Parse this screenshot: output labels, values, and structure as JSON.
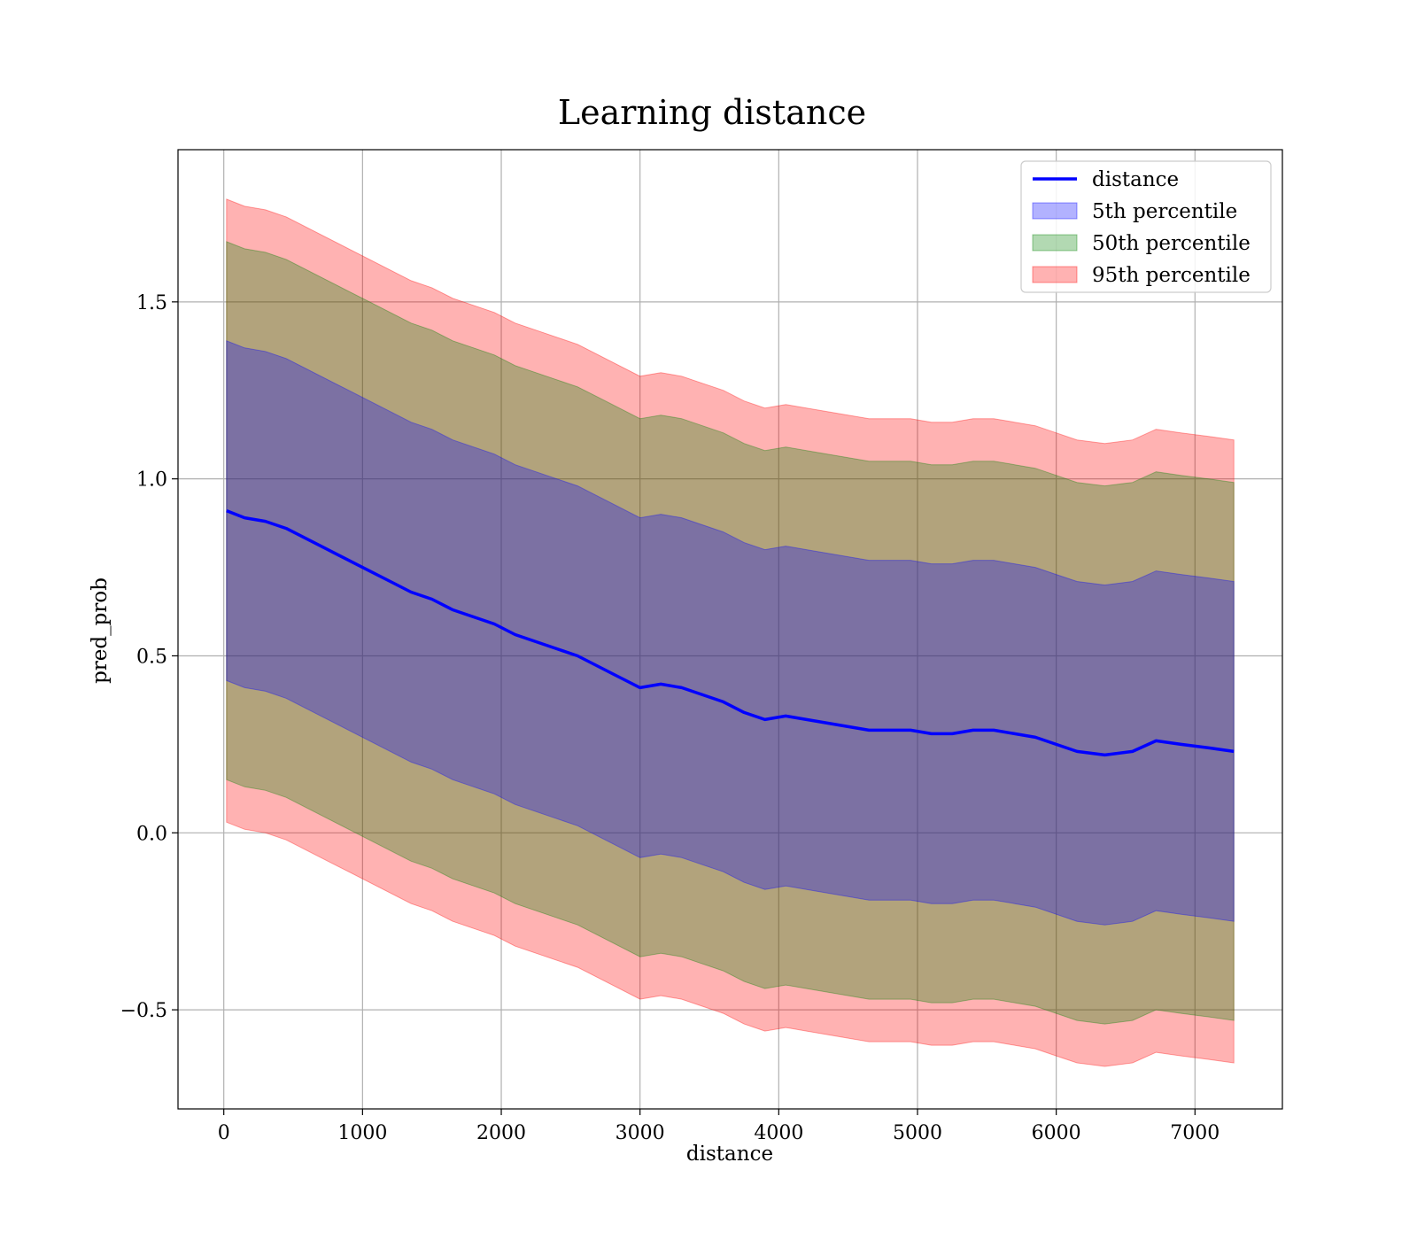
{
  "chart_data": {
    "type": "line",
    "title": "Learning distance",
    "xlabel": "distance",
    "ylabel": "pred_prob",
    "xlim": [
      -330,
      7630
    ],
    "ylim": [
      -0.78,
      1.93
    ],
    "grid": true,
    "legend_position": "top-right",
    "x_ticks": [
      0,
      1000,
      2000,
      3000,
      4000,
      5000,
      6000,
      7000
    ],
    "x_tick_labels": [
      "0",
      "1000",
      "2000",
      "3000",
      "4000",
      "5000",
      "6000",
      "7000"
    ],
    "y_ticks": [
      -0.5,
      0.0,
      0.5,
      1.0,
      1.5
    ],
    "y_tick_labels": [
      "−0.5",
      "0.0",
      "0.5",
      "1.0",
      "1.5"
    ],
    "colors": {
      "line": "#0000ff",
      "band_5th": "#0000ff",
      "band_50th": "#008000",
      "band_95th": "#ff0000",
      "grid": "#b0b0b0"
    },
    "series": [
      {
        "name": "distance",
        "kind": "line",
        "x": [
          20,
          150,
          300,
          450,
          600,
          750,
          900,
          1050,
          1200,
          1350,
          1500,
          1650,
          1800,
          1950,
          2100,
          2250,
          2400,
          2550,
          2700,
          2850,
          3000,
          3150,
          3300,
          3450,
          3600,
          3750,
          3900,
          4050,
          4200,
          4350,
          4500,
          4650,
          4800,
          4950,
          5100,
          5250,
          5400,
          5550,
          5700,
          5850,
          6000,
          6150,
          6350,
          6550,
          6720,
          6900,
          7100,
          7280
        ],
        "y": [
          0.91,
          0.89,
          0.88,
          0.86,
          0.83,
          0.8,
          0.77,
          0.74,
          0.71,
          0.68,
          0.66,
          0.63,
          0.61,
          0.59,
          0.56,
          0.54,
          0.52,
          0.5,
          0.47,
          0.44,
          0.41,
          0.42,
          0.41,
          0.39,
          0.37,
          0.34,
          0.32,
          0.33,
          0.32,
          0.31,
          0.3,
          0.29,
          0.29,
          0.29,
          0.28,
          0.28,
          0.29,
          0.29,
          0.28,
          0.27,
          0.25,
          0.23,
          0.22,
          0.23,
          0.26,
          0.25,
          0.24,
          0.23
        ]
      },
      {
        "name": "5th percentile",
        "kind": "band",
        "x": [
          20,
          150,
          300,
          450,
          600,
          750,
          900,
          1050,
          1200,
          1350,
          1500,
          1650,
          1800,
          1950,
          2100,
          2250,
          2400,
          2550,
          2700,
          2850,
          3000,
          3150,
          3300,
          3450,
          3600,
          3750,
          3900,
          4050,
          4200,
          4350,
          4500,
          4650,
          4800,
          4950,
          5100,
          5250,
          5400,
          5550,
          5700,
          5850,
          6000,
          6150,
          6350,
          6550,
          6720,
          6900,
          7100,
          7280
        ],
        "lower": [
          0.43,
          0.41,
          0.4,
          0.38,
          0.35,
          0.32,
          0.29,
          0.26,
          0.23,
          0.2,
          0.18,
          0.15,
          0.13,
          0.11,
          0.08,
          0.06,
          0.04,
          0.02,
          -0.01,
          -0.04,
          -0.07,
          -0.06,
          -0.07,
          -0.09,
          -0.11,
          -0.14,
          -0.16,
          -0.15,
          -0.16,
          -0.17,
          -0.18,
          -0.19,
          -0.19,
          -0.19,
          -0.2,
          -0.2,
          -0.19,
          -0.19,
          -0.2,
          -0.21,
          -0.23,
          -0.25,
          -0.26,
          -0.25,
          -0.22,
          -0.23,
          -0.24,
          -0.25
        ],
        "upper": [
          1.39,
          1.37,
          1.36,
          1.34,
          1.31,
          1.28,
          1.25,
          1.22,
          1.19,
          1.16,
          1.14,
          1.11,
          1.09,
          1.07,
          1.04,
          1.02,
          1.0,
          0.98,
          0.95,
          0.92,
          0.89,
          0.9,
          0.89,
          0.87,
          0.85,
          0.82,
          0.8,
          0.81,
          0.8,
          0.79,
          0.78,
          0.77,
          0.77,
          0.77,
          0.76,
          0.76,
          0.77,
          0.77,
          0.76,
          0.75,
          0.73,
          0.71,
          0.7,
          0.71,
          0.74,
          0.73,
          0.72,
          0.71
        ]
      },
      {
        "name": "50th percentile",
        "kind": "band",
        "x": [
          20,
          150,
          300,
          450,
          600,
          750,
          900,
          1050,
          1200,
          1350,
          1500,
          1650,
          1800,
          1950,
          2100,
          2250,
          2400,
          2550,
          2700,
          2850,
          3000,
          3150,
          3300,
          3450,
          3600,
          3750,
          3900,
          4050,
          4200,
          4350,
          4500,
          4650,
          4800,
          4950,
          5100,
          5250,
          5400,
          5550,
          5700,
          5850,
          6000,
          6150,
          6350,
          6550,
          6720,
          6900,
          7100,
          7280
        ],
        "lower": [
          0.15,
          0.13,
          0.12,
          0.1,
          0.07,
          0.04,
          0.01,
          -0.02,
          -0.05,
          -0.08,
          -0.1,
          -0.13,
          -0.15,
          -0.17,
          -0.2,
          -0.22,
          -0.24,
          -0.26,
          -0.29,
          -0.32,
          -0.35,
          -0.34,
          -0.35,
          -0.37,
          -0.39,
          -0.42,
          -0.44,
          -0.43,
          -0.44,
          -0.45,
          -0.46,
          -0.47,
          -0.47,
          -0.47,
          -0.48,
          -0.48,
          -0.47,
          -0.47,
          -0.48,
          -0.49,
          -0.51,
          -0.53,
          -0.54,
          -0.53,
          -0.5,
          -0.51,
          -0.52,
          -0.53
        ],
        "upper": [
          1.67,
          1.65,
          1.64,
          1.62,
          1.59,
          1.56,
          1.53,
          1.5,
          1.47,
          1.44,
          1.42,
          1.39,
          1.37,
          1.35,
          1.32,
          1.3,
          1.28,
          1.26,
          1.23,
          1.2,
          1.17,
          1.18,
          1.17,
          1.15,
          1.13,
          1.1,
          1.08,
          1.09,
          1.08,
          1.07,
          1.06,
          1.05,
          1.05,
          1.05,
          1.04,
          1.04,
          1.05,
          1.05,
          1.04,
          1.03,
          1.01,
          0.99,
          0.98,
          0.99,
          1.02,
          1.01,
          1.0,
          0.99
        ]
      },
      {
        "name": "95th percentile",
        "kind": "band",
        "x": [
          20,
          150,
          300,
          450,
          600,
          750,
          900,
          1050,
          1200,
          1350,
          1500,
          1650,
          1800,
          1950,
          2100,
          2250,
          2400,
          2550,
          2700,
          2850,
          3000,
          3150,
          3300,
          3450,
          3600,
          3750,
          3900,
          4050,
          4200,
          4350,
          4500,
          4650,
          4800,
          4950,
          5100,
          5250,
          5400,
          5550,
          5700,
          5850,
          6000,
          6150,
          6350,
          6550,
          6720,
          6900,
          7100,
          7280
        ],
        "lower": [
          0.03,
          0.01,
          0.0,
          -0.02,
          -0.05,
          -0.08,
          -0.11,
          -0.14,
          -0.17,
          -0.2,
          -0.22,
          -0.25,
          -0.27,
          -0.29,
          -0.32,
          -0.34,
          -0.36,
          -0.38,
          -0.41,
          -0.44,
          -0.47,
          -0.46,
          -0.47,
          -0.49,
          -0.51,
          -0.54,
          -0.56,
          -0.55,
          -0.56,
          -0.57,
          -0.58,
          -0.59,
          -0.59,
          -0.59,
          -0.6,
          -0.6,
          -0.59,
          -0.59,
          -0.6,
          -0.61,
          -0.63,
          -0.65,
          -0.66,
          -0.65,
          -0.62,
          -0.63,
          -0.64,
          -0.65
        ],
        "upper": [
          1.79,
          1.77,
          1.76,
          1.74,
          1.71,
          1.68,
          1.65,
          1.62,
          1.59,
          1.56,
          1.54,
          1.51,
          1.49,
          1.47,
          1.44,
          1.42,
          1.4,
          1.38,
          1.35,
          1.32,
          1.29,
          1.3,
          1.29,
          1.27,
          1.25,
          1.22,
          1.2,
          1.21,
          1.2,
          1.19,
          1.18,
          1.17,
          1.17,
          1.17,
          1.16,
          1.16,
          1.17,
          1.17,
          1.16,
          1.15,
          1.13,
          1.11,
          1.1,
          1.11,
          1.14,
          1.13,
          1.12,
          1.11
        ]
      }
    ],
    "legend": [
      "distance",
      "5th percentile",
      "50th percentile",
      "95th percentile"
    ]
  }
}
